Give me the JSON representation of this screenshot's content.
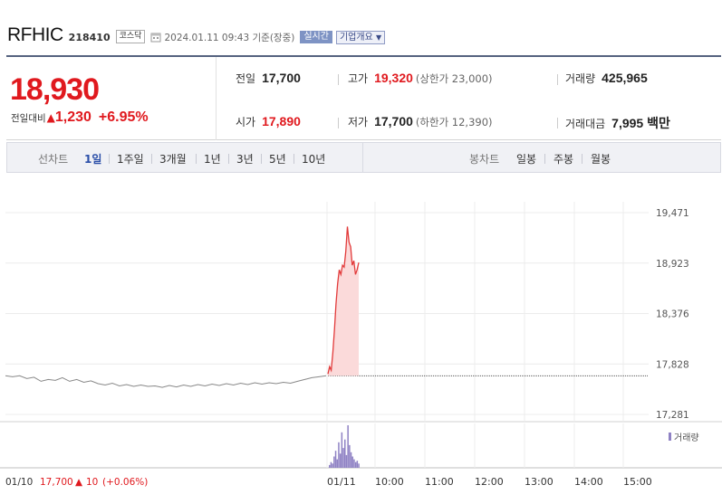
{
  "header": {
    "name": "RFHIC",
    "code": "218410",
    "market": "코스닥",
    "timestamp": "2024.01.11 09:43 기준(장중)",
    "live_badge": "실시간",
    "company_button": "기업개요"
  },
  "quote": {
    "price": "18,930",
    "change_label": "전일대비",
    "change_amount": "1,230",
    "change_pct": "+6.95%",
    "prev_close_label": "전일",
    "prev_close": "17,700",
    "high_label": "고가",
    "high": "19,320",
    "upper_limit": "(상한가 23,000)",
    "volume_label": "거래량",
    "volume": "425,965",
    "open_label": "시가",
    "open": "17,890",
    "low_label": "저가",
    "low": "17,700",
    "lower_limit": "(하한가 12,390)",
    "value_label": "거래대금",
    "value": "7,995 백만"
  },
  "tabs": {
    "line_label": "선차트",
    "line_items": [
      "1일",
      "1주일",
      "3개월",
      "1년",
      "3년",
      "5년",
      "10년"
    ],
    "active": "1일",
    "candle_label": "봉차트",
    "candle_items": [
      "일봉",
      "주봉",
      "월봉"
    ]
  },
  "chart_data": {
    "type": "line",
    "y_ticks": [
      "19,471",
      "18,923",
      "18,376",
      "17,828",
      "17,281"
    ],
    "ylim": [
      17281,
      19471
    ],
    "x_ticks": [
      "01/10",
      "01/11",
      "10:00",
      "11:00",
      "12:00",
      "13:00",
      "14:00",
      "15:00"
    ],
    "prev_close": 17700,
    "prev_day_prices": [
      17700,
      17690,
      17700,
      17670,
      17685,
      17640,
      17660,
      17650,
      17680,
      17640,
      17660,
      17630,
      17645,
      17615,
      17600,
      17620,
      17590,
      17605,
      17585,
      17600,
      17585,
      17590,
      17575,
      17595,
      17580,
      17600,
      17585,
      17605,
      17590,
      17610,
      17595,
      17615,
      17600,
      17620,
      17605,
      17625,
      17610,
      17625,
      17615,
      17630,
      17620,
      17640,
      17660,
      17680,
      17690,
      17700
    ],
    "today_prices": [
      17720,
      17800,
      17760,
      17950,
      18200,
      18480,
      18700,
      18850,
      18800,
      18900,
      18880,
      19050,
      19320,
      19150,
      19100,
      18900,
      18950,
      18800,
      18850,
      18930
    ],
    "volume_legend": "거래량",
    "today_volume": [
      2,
      4,
      3,
      8,
      12,
      6,
      18,
      10,
      25,
      14,
      20,
      9,
      30,
      16,
      11,
      8,
      6,
      4,
      5,
      3
    ],
    "footer": {
      "prev_date": "01/10",
      "prev_close_text": "17,700",
      "prev_change": "10",
      "prev_change_pct": "(+0.06%)"
    }
  },
  "colors": {
    "up": "#e0191e",
    "line": "#e23b3b",
    "area": "#fbdada",
    "volume": "#8f82c4",
    "prev_line": "#888888"
  }
}
